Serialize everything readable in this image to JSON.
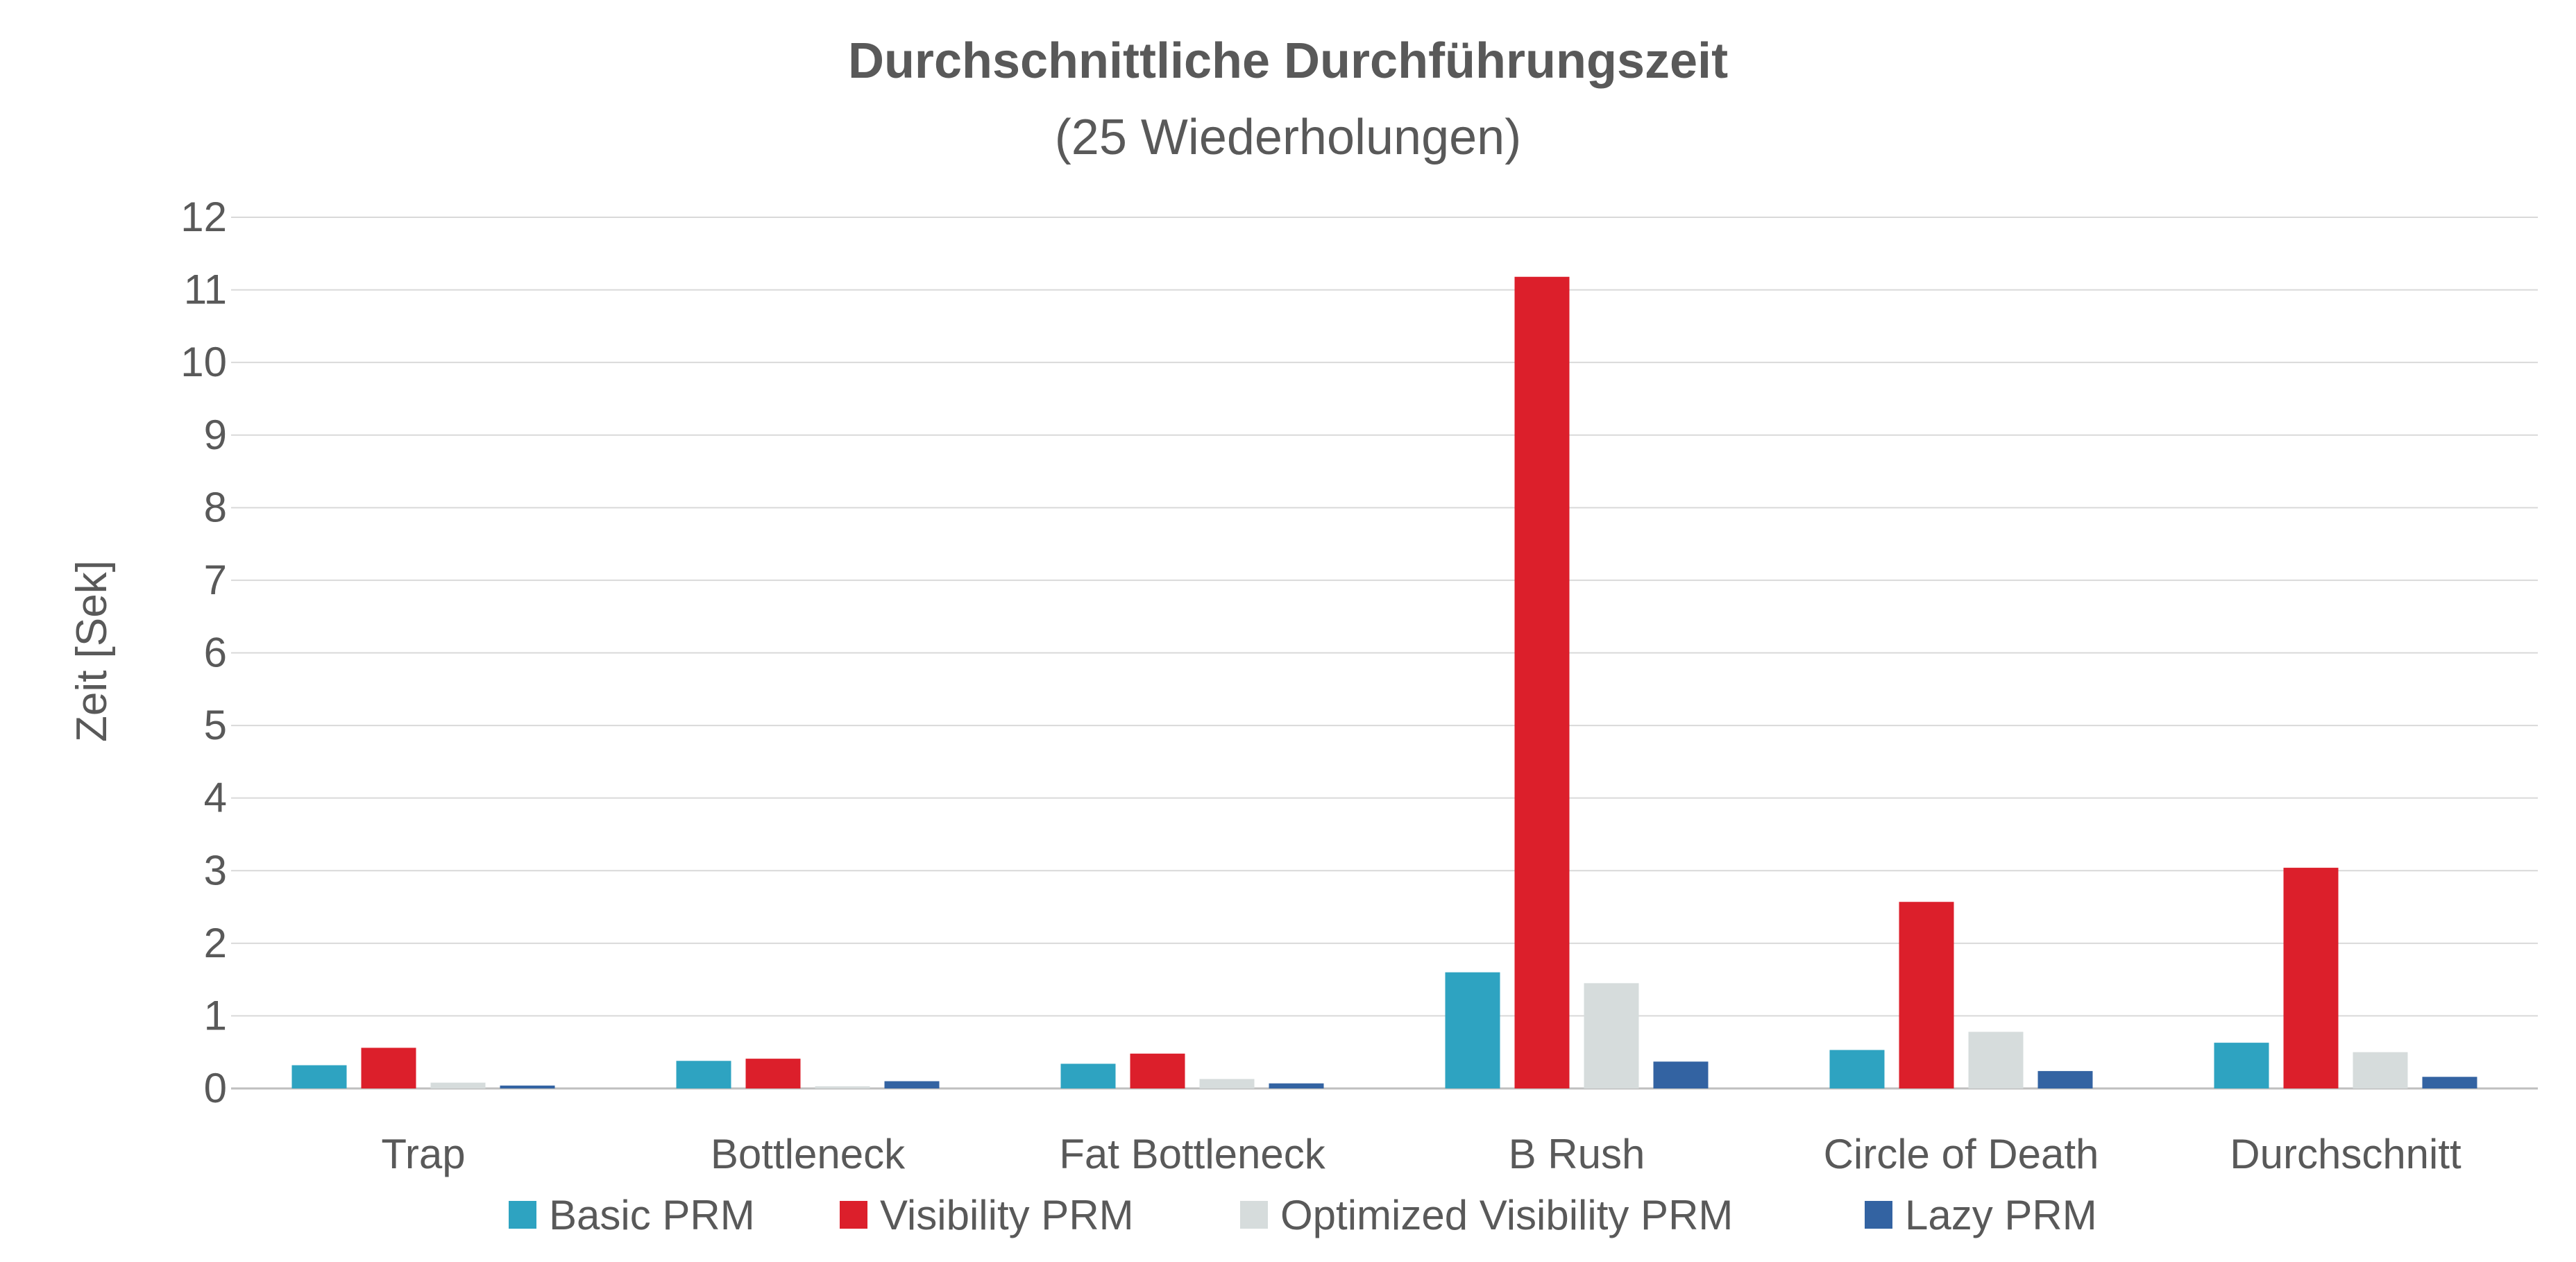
{
  "chart_data": {
    "type": "bar",
    "title": "Durchschnittliche Durchführungszeit",
    "subtitle": "(25 Wiederholungen)",
    "xlabel": "",
    "ylabel": "Zeit [Sek]",
    "ylim": [
      0,
      12
    ],
    "yticks": [
      "0",
      "1",
      "2",
      "3",
      "4",
      "5",
      "6",
      "7",
      "8",
      "9",
      "10",
      "11",
      "12"
    ],
    "grid": true,
    "legend_position": "bottom",
    "categories": [
      "Trap",
      "Bottleneck",
      "Fat Bottleneck",
      "B Rush",
      "Circle of Death",
      "Durchschnitt"
    ],
    "series": [
      {
        "name": "Basic PRM",
        "color": "#2ea3c1",
        "values": [
          0.32,
          0.38,
          0.34,
          1.6,
          0.53,
          0.63
        ]
      },
      {
        "name": "Visibility PRM",
        "color": "#dc1f2b",
        "values": [
          0.56,
          0.41,
          0.48,
          11.18,
          2.57,
          3.04
        ]
      },
      {
        "name": "Optimized Visibility PRM",
        "color": "#d6dcdc",
        "values": [
          0.08,
          0.03,
          0.13,
          1.45,
          0.78,
          0.5
        ]
      },
      {
        "name": "Lazy PRM",
        "color": "#3363a2",
        "values": [
          0.04,
          0.1,
          0.07,
          0.37,
          0.24,
          0.16
        ]
      }
    ]
  }
}
